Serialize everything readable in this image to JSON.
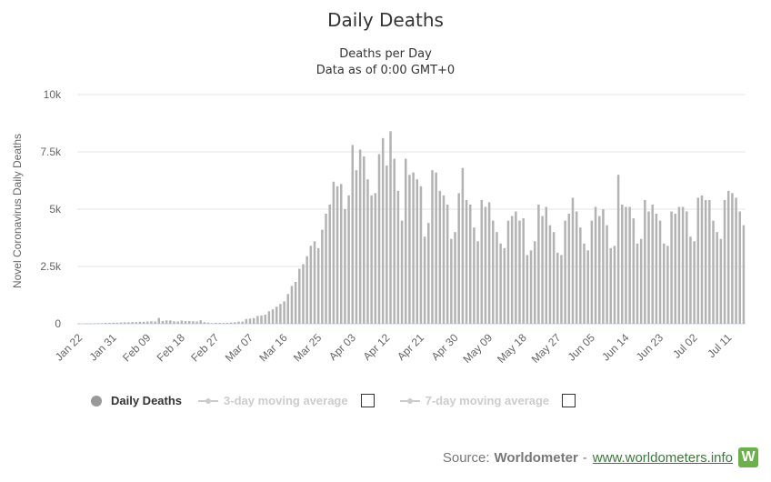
{
  "chart_data": {
    "type": "bar",
    "title": "Daily Deaths",
    "subtitle_line1": "Deaths per Day",
    "subtitle_line2": "Data as of 0:00 GMT+0",
    "ylabel": "Novel Coronavirus Daily Deaths",
    "xlabel": "",
    "ylim": [
      0,
      10000
    ],
    "y_ticks": [
      "0",
      "2.5k",
      "5k",
      "7.5k",
      "10k"
    ],
    "x_tick_labels": [
      "Jan 22",
      "Jan 31",
      "Feb 09",
      "Feb 18",
      "Feb 27",
      "Mar 07",
      "Mar 16",
      "Mar 25",
      "Apr 03",
      "Apr 12",
      "Apr 21",
      "Apr 30",
      "May 09",
      "May 18",
      "May 27",
      "Jun 05",
      "Jun 14",
      "Jun 23",
      "Jul 02",
      "Jul 11"
    ],
    "start_date": "2020-01-22",
    "values": [
      17,
      0,
      8,
      16,
      14,
      26,
      26,
      38,
      43,
      46,
      45,
      57,
      64,
      66,
      73,
      73,
      86,
      89,
      97,
      108,
      97,
      254,
      121,
      143,
      142,
      106,
      98,
      139,
      115,
      118,
      109,
      97,
      150,
      71,
      52,
      29,
      44,
      37,
      35,
      42,
      56,
      65,
      92,
      94,
      207,
      225,
      245,
      343,
      358,
      395,
      546,
      628,
      746,
      862,
      975,
      1300,
      1650,
      1825,
      2400,
      2600,
      2950,
      3400,
      3600,
      3300,
      4100,
      4800,
      5200,
      6200,
      6000,
      6100,
      5000,
      5600,
      7800,
      6700,
      7600,
      7300,
      6300,
      5600,
      5700,
      7400,
      8100,
      6900,
      8400,
      7200,
      5800,
      4500,
      7200,
      6500,
      6600,
      6300,
      6000,
      3800,
      4400,
      6700,
      6600,
      5800,
      5600,
      5200,
      3700,
      4000,
      5700,
      6800,
      5400,
      5200,
      4200,
      3600,
      5400,
      5100,
      5300,
      4500,
      4000,
      3500,
      3300,
      4500,
      4700,
      4900,
      4500,
      4600,
      3000,
      3200,
      3600,
      5200,
      4700,
      5100,
      4300,
      4000,
      3100,
      3000,
      4500,
      4800,
      5500,
      4900,
      4200,
      3500,
      3200,
      4500,
      5100,
      4700,
      5000,
      4300,
      3300,
      3400,
      6500,
      5200,
      5100,
      5100,
      4600,
      3500,
      3700,
      5400,
      4900,
      5200,
      4800,
      4500,
      3500,
      3400,
      4900,
      4800,
      5100,
      5100,
      4900,
      3800,
      3600,
      5500,
      5600,
      5400,
      5400,
      4500,
      4000,
      3700,
      5400,
      5800,
      5700,
      5500,
      4900,
      4300
    ]
  },
  "legend": {
    "item1": "Daily Deaths",
    "item2": "3-day moving average",
    "item3": "7-day moving average"
  },
  "source": {
    "prefix": "Source:",
    "name": "Worldometer",
    "separator": "-",
    "link": "www.worldometers.info",
    "logo_letter": "W"
  },
  "colors": {
    "bar": "#b3b3b3",
    "grid": "#e6e6e6",
    "axis_text": "#666666",
    "legend_active": "#333333",
    "legend_inactive": "#cccccc",
    "logo": "#6ab14a"
  }
}
